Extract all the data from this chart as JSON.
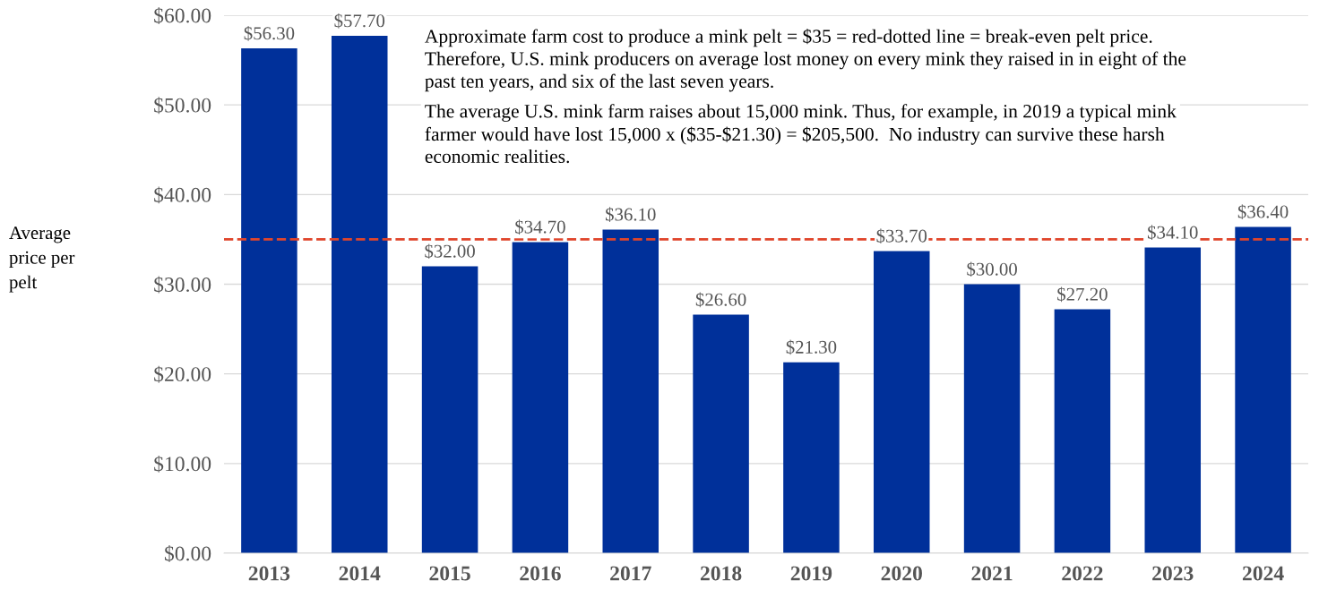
{
  "chart_data": {
    "type": "bar",
    "ylabel": "Average\nprice per\npelt",
    "categories": [
      "2013",
      "2014",
      "2015",
      "2016",
      "2017",
      "2018",
      "2019",
      "2020",
      "2021",
      "2022",
      "2023",
      "2024"
    ],
    "values": [
      56.3,
      57.7,
      32.0,
      34.7,
      36.1,
      26.6,
      21.3,
      33.7,
      30.0,
      27.2,
      34.1,
      36.4
    ],
    "value_labels": [
      "$56.30",
      "$57.70",
      "$32.00",
      "$34.70",
      "$36.10",
      "$26.60",
      "$21.30",
      "$33.70",
      "$30.00",
      "$27.20",
      "$34.10",
      "$36.40"
    ],
    "color": "#00309a",
    "ylim": [
      0,
      60
    ],
    "yticks": [
      {
        "value": 0,
        "label": "$0.00"
      },
      {
        "value": 10,
        "label": "$10.00"
      },
      {
        "value": 20,
        "label": "$20.00"
      },
      {
        "value": 30,
        "label": "$30.00"
      },
      {
        "value": 40,
        "label": "$40.00"
      },
      {
        "value": 50,
        "label": "$50.00"
      },
      {
        "value": 60,
        "label": "$60.00"
      }
    ],
    "grid": "y",
    "ref_lines": [
      {
        "axis": "y",
        "value": 35,
        "color": "#e0452b",
        "line_style": "dashed"
      }
    ],
    "annotations": [
      "Approximate farm cost to produce a mink pelt = $35 = red-dotted line = break-even pelt price.\nTherefore, U.S. mink producers on average lost money on every mink they raised in in eight of the\npast ten years, and six of the last seven years.",
      "The average U.S. mink farm raises about 15,000 mink. Thus, for example, in 2019 a typical mink\nfarmer would have lost 15,000 x ($35-$21.30) = $205,500.  No industry can survive these harsh\neconomic realities."
    ]
  }
}
